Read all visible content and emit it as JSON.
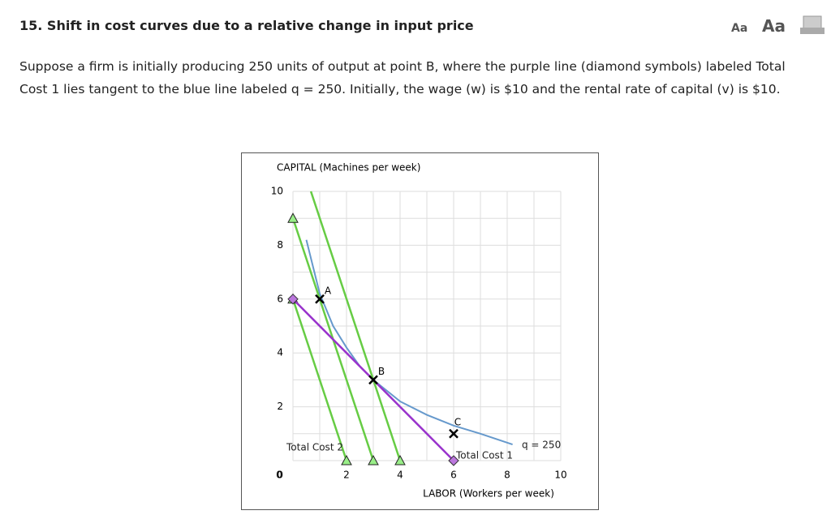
{
  "header": {
    "title": "15. Shift in cost curves due to a relative change in input price",
    "font_small": "Aa",
    "font_large": "Aa"
  },
  "paragraph": "Suppose a firm is initially producing 250 units of output at point B, where the purple line (diamond symbols) labeled Total Cost 1 lies tangent to the blue line labeled q = 250. Initially, the wage (w) is $10 and the rental rate of capital (v) is $10.",
  "chart_data": {
    "type": "line",
    "ylabel": "CAPITAL (Machines per week)",
    "xlabel": "LABOR (Workers per week)",
    "xlim": [
      0,
      10
    ],
    "ylim": [
      0,
      10
    ],
    "xticks": [
      0,
      2,
      4,
      6,
      8,
      10
    ],
    "yticks": [
      0,
      2,
      4,
      6,
      8,
      10
    ],
    "xminor": [
      1,
      3,
      5,
      7,
      9
    ],
    "yminor": [
      1,
      3,
      5,
      7,
      9
    ],
    "grid": true,
    "series": [
      {
        "label": "q = 250",
        "color": "#6699cc",
        "marker": "none",
        "x": [
          0.5,
          1,
          1.5,
          2,
          2.5,
          3,
          4,
          5,
          6,
          7,
          8.2
        ],
        "values": [
          8.2,
          6.2,
          5.0,
          4.2,
          3.5,
          3.0,
          2.2,
          1.7,
          1.3,
          1.0,
          0.6
        ]
      },
      {
        "label": "Total Cost 2",
        "color": "#66cc44",
        "marker": "triangle",
        "x": [
          0,
          2
        ],
        "values": [
          6,
          0
        ]
      },
      {
        "color": "#66cc44",
        "marker": "triangle",
        "x": [
          0,
          3
        ],
        "values": [
          9,
          0
        ]
      },
      {
        "color": "#66cc44",
        "marker": "triangle",
        "x": [
          0.67,
          4
        ],
        "values": [
          10,
          0
        ]
      },
      {
        "label": "Total Cost 1",
        "color": "#9933cc",
        "marker": "diamond",
        "x": [
          0,
          6
        ],
        "values": [
          6,
          0
        ]
      }
    ],
    "points": [
      {
        "label": "A",
        "x": 1,
        "y": 6
      },
      {
        "label": "B",
        "x": 3,
        "y": 3
      },
      {
        "label": "C",
        "x": 6,
        "y": 1
      }
    ]
  }
}
